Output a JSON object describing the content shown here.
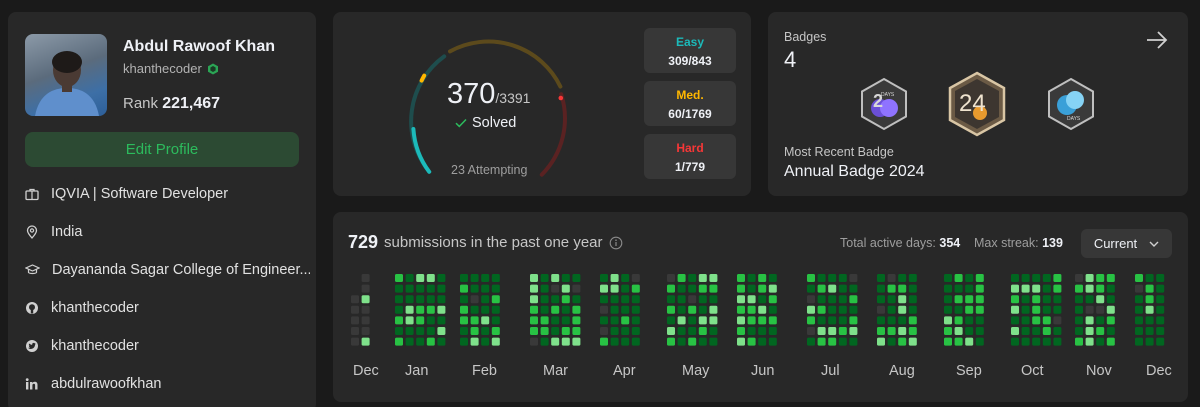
{
  "profile": {
    "name": "Abdul Rawoof Khan",
    "username": "khanthecoder",
    "rank_label": "Rank",
    "rank_value": "221,467",
    "edit_label": "Edit Profile",
    "info": [
      {
        "icon": "briefcase-icon",
        "text": "IQVIA | Software Developer"
      },
      {
        "icon": "location-pin-icon",
        "text": "India"
      },
      {
        "icon": "graduation-cap-icon",
        "text": "Dayananda Sagar College of Engineer..."
      },
      {
        "icon": "github-icon",
        "text": "khanthecoder"
      },
      {
        "icon": "twitter-icon",
        "text": "khanthecoder"
      },
      {
        "icon": "linkedin-icon",
        "text": "abdulrawoofkhan"
      }
    ]
  },
  "solved": {
    "count": "370",
    "total": "/3391",
    "label": "Solved",
    "attempting": "23 Attempting",
    "difficulties": [
      {
        "label": "Easy",
        "value": "309/843",
        "color": "#1cbaba"
      },
      {
        "label": "Med.",
        "value": "60/1769",
        "color": "#ffb700"
      },
      {
        "label": "Hard",
        "value": "1/779",
        "color": "#f63737"
      }
    ]
  },
  "badges": {
    "title": "Badges",
    "count": "4",
    "recent_title": "Most Recent Badge",
    "recent_name": "Annual Badge 2024",
    "items": [
      {
        "icon": "50-days-badge-icon",
        "text": "DAYS"
      },
      {
        "icon": "annual-2024-badge-icon",
        "text": "24"
      },
      {
        "icon": "100-days-badge-icon",
        "text": "DAYS"
      }
    ]
  },
  "submissions": {
    "count": "729",
    "label": "submissions in the past one year",
    "active_label": "Total active days:",
    "active_value": "354",
    "streak_label": "Max streak:",
    "streak_value": "139",
    "period": "Current",
    "months": [
      "Dec",
      "Jan",
      "Feb",
      "Mar",
      "Apr",
      "May",
      "Jun",
      "Jul",
      "Aug",
      "Sep",
      "Oct",
      "Nov",
      "Dec"
    ]
  },
  "colors": {
    "accent_green": "#2cbb5d",
    "heat_levels": [
      "#393939",
      "#016620",
      "#28c244",
      "#7fe18b"
    ]
  }
}
